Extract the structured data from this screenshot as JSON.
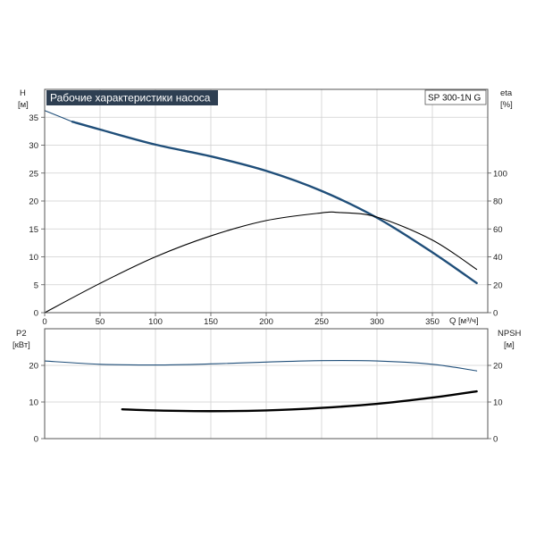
{
  "title": "Рабочие характеристики насоса",
  "model": "SP 300-1N G",
  "colors": {
    "primary": "#1f4e79",
    "black": "#000000",
    "title_bg": "#2e3f52",
    "frame": "#555555"
  },
  "chart_data": [
    {
      "type": "line",
      "name": "upper",
      "left_axis": {
        "label": "H",
        "unit": "[м]",
        "ylim": [
          0,
          40
        ],
        "ticks": [
          0,
          5,
          10,
          15,
          20,
          25,
          30,
          35
        ]
      },
      "right_axis": {
        "label": "eta",
        "unit": "[%]",
        "ylim": [
          0,
          160
        ],
        "ticks": [
          0,
          20,
          40,
          60,
          80,
          100
        ]
      },
      "xaxis": {
        "label": "Q [м³/ч]",
        "xlim": [
          0,
          400
        ],
        "ticks": [
          0,
          50,
          100,
          150,
          200,
          250,
          300,
          350
        ]
      },
      "grid": true,
      "series": [
        {
          "axis": "left",
          "color": "#1f4e79",
          "style": "thin",
          "x": [
            0,
            10,
            20,
            25
          ],
          "y": [
            36.2,
            35.4,
            34.6,
            34.2
          ]
        },
        {
          "axis": "left",
          "color": "#1f4e79",
          "style": "thick",
          "x": [
            25,
            50,
            100,
            150,
            200,
            250,
            300,
            350,
            390
          ],
          "y": [
            34.2,
            32.8,
            30.1,
            28.0,
            25.4,
            21.8,
            17.0,
            10.8,
            5.3
          ]
        },
        {
          "axis": "right",
          "color": "#000000",
          "style": "thin",
          "x": [
            0,
            50,
            100,
            150,
            200,
            250,
            265,
            300,
            350,
            390
          ],
          "y": [
            0,
            21,
            40,
            55,
            66,
            71.5,
            71.8,
            68.5,
            52,
            31
          ]
        }
      ]
    },
    {
      "type": "line",
      "name": "lower",
      "left_axis": {
        "label": "P2",
        "unit": "[кВт]",
        "ylim": [
          0,
          30
        ],
        "ticks": [
          0,
          10,
          20
        ]
      },
      "right_axis": {
        "label": "NPSH",
        "unit": "[м]",
        "ylim": [
          0,
          30
        ],
        "ticks": [
          0,
          10,
          20
        ]
      },
      "xaxis": {
        "xlim": [
          0,
          400
        ]
      },
      "grid": true,
      "series": [
        {
          "axis": "left",
          "color": "#1f4e79",
          "style": "thin",
          "x": [
            0,
            50,
            100,
            150,
            200,
            250,
            300,
            350,
            390
          ],
          "y": [
            21.2,
            20.3,
            20.1,
            20.4,
            20.9,
            21.3,
            21.2,
            20.3,
            18.5
          ]
        },
        {
          "axis": "right",
          "color": "#000000",
          "style": "thick",
          "x": [
            70,
            100,
            150,
            200,
            250,
            300,
            350,
            390
          ],
          "y": [
            8.0,
            7.7,
            7.5,
            7.7,
            8.4,
            9.5,
            11.2,
            12.9
          ]
        }
      ]
    }
  ]
}
